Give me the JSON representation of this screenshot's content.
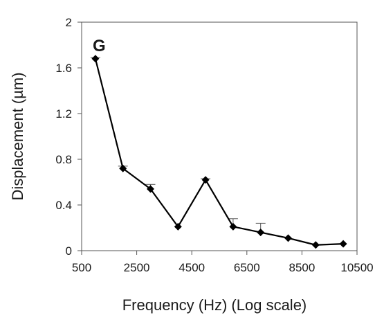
{
  "chart_data": {
    "type": "line",
    "panel_label": "G",
    "xlabel": "Frequency (Hz) (Log scale)",
    "ylabel": "Displacement (µm)",
    "xlim": [
      500,
      10500
    ],
    "ylim": [
      0,
      2
    ],
    "x_ticks": [
      "500",
      "2500",
      "4500",
      "6500",
      "8500",
      "10500"
    ],
    "y_ticks": [
      "0",
      "0.4",
      "0.8",
      "1.2",
      "1.6",
      "2"
    ],
    "grid": false,
    "legend": "none",
    "series": [
      {
        "x": [
          1000,
          2000,
          3000,
          4000,
          5000,
          6000,
          7000,
          8000,
          9000,
          10000
        ],
        "y": [
          1.68,
          0.72,
          0.54,
          0.21,
          0.62,
          0.21,
          0.16,
          0.11,
          0.05,
          0.06
        ],
        "error_upper": [
          0.01,
          0.02,
          0.04,
          0.0,
          0.01,
          0.07,
          0.08,
          0.0,
          0.0,
          0.0
        ],
        "color": "#000000",
        "marker": "diamond"
      }
    ]
  }
}
